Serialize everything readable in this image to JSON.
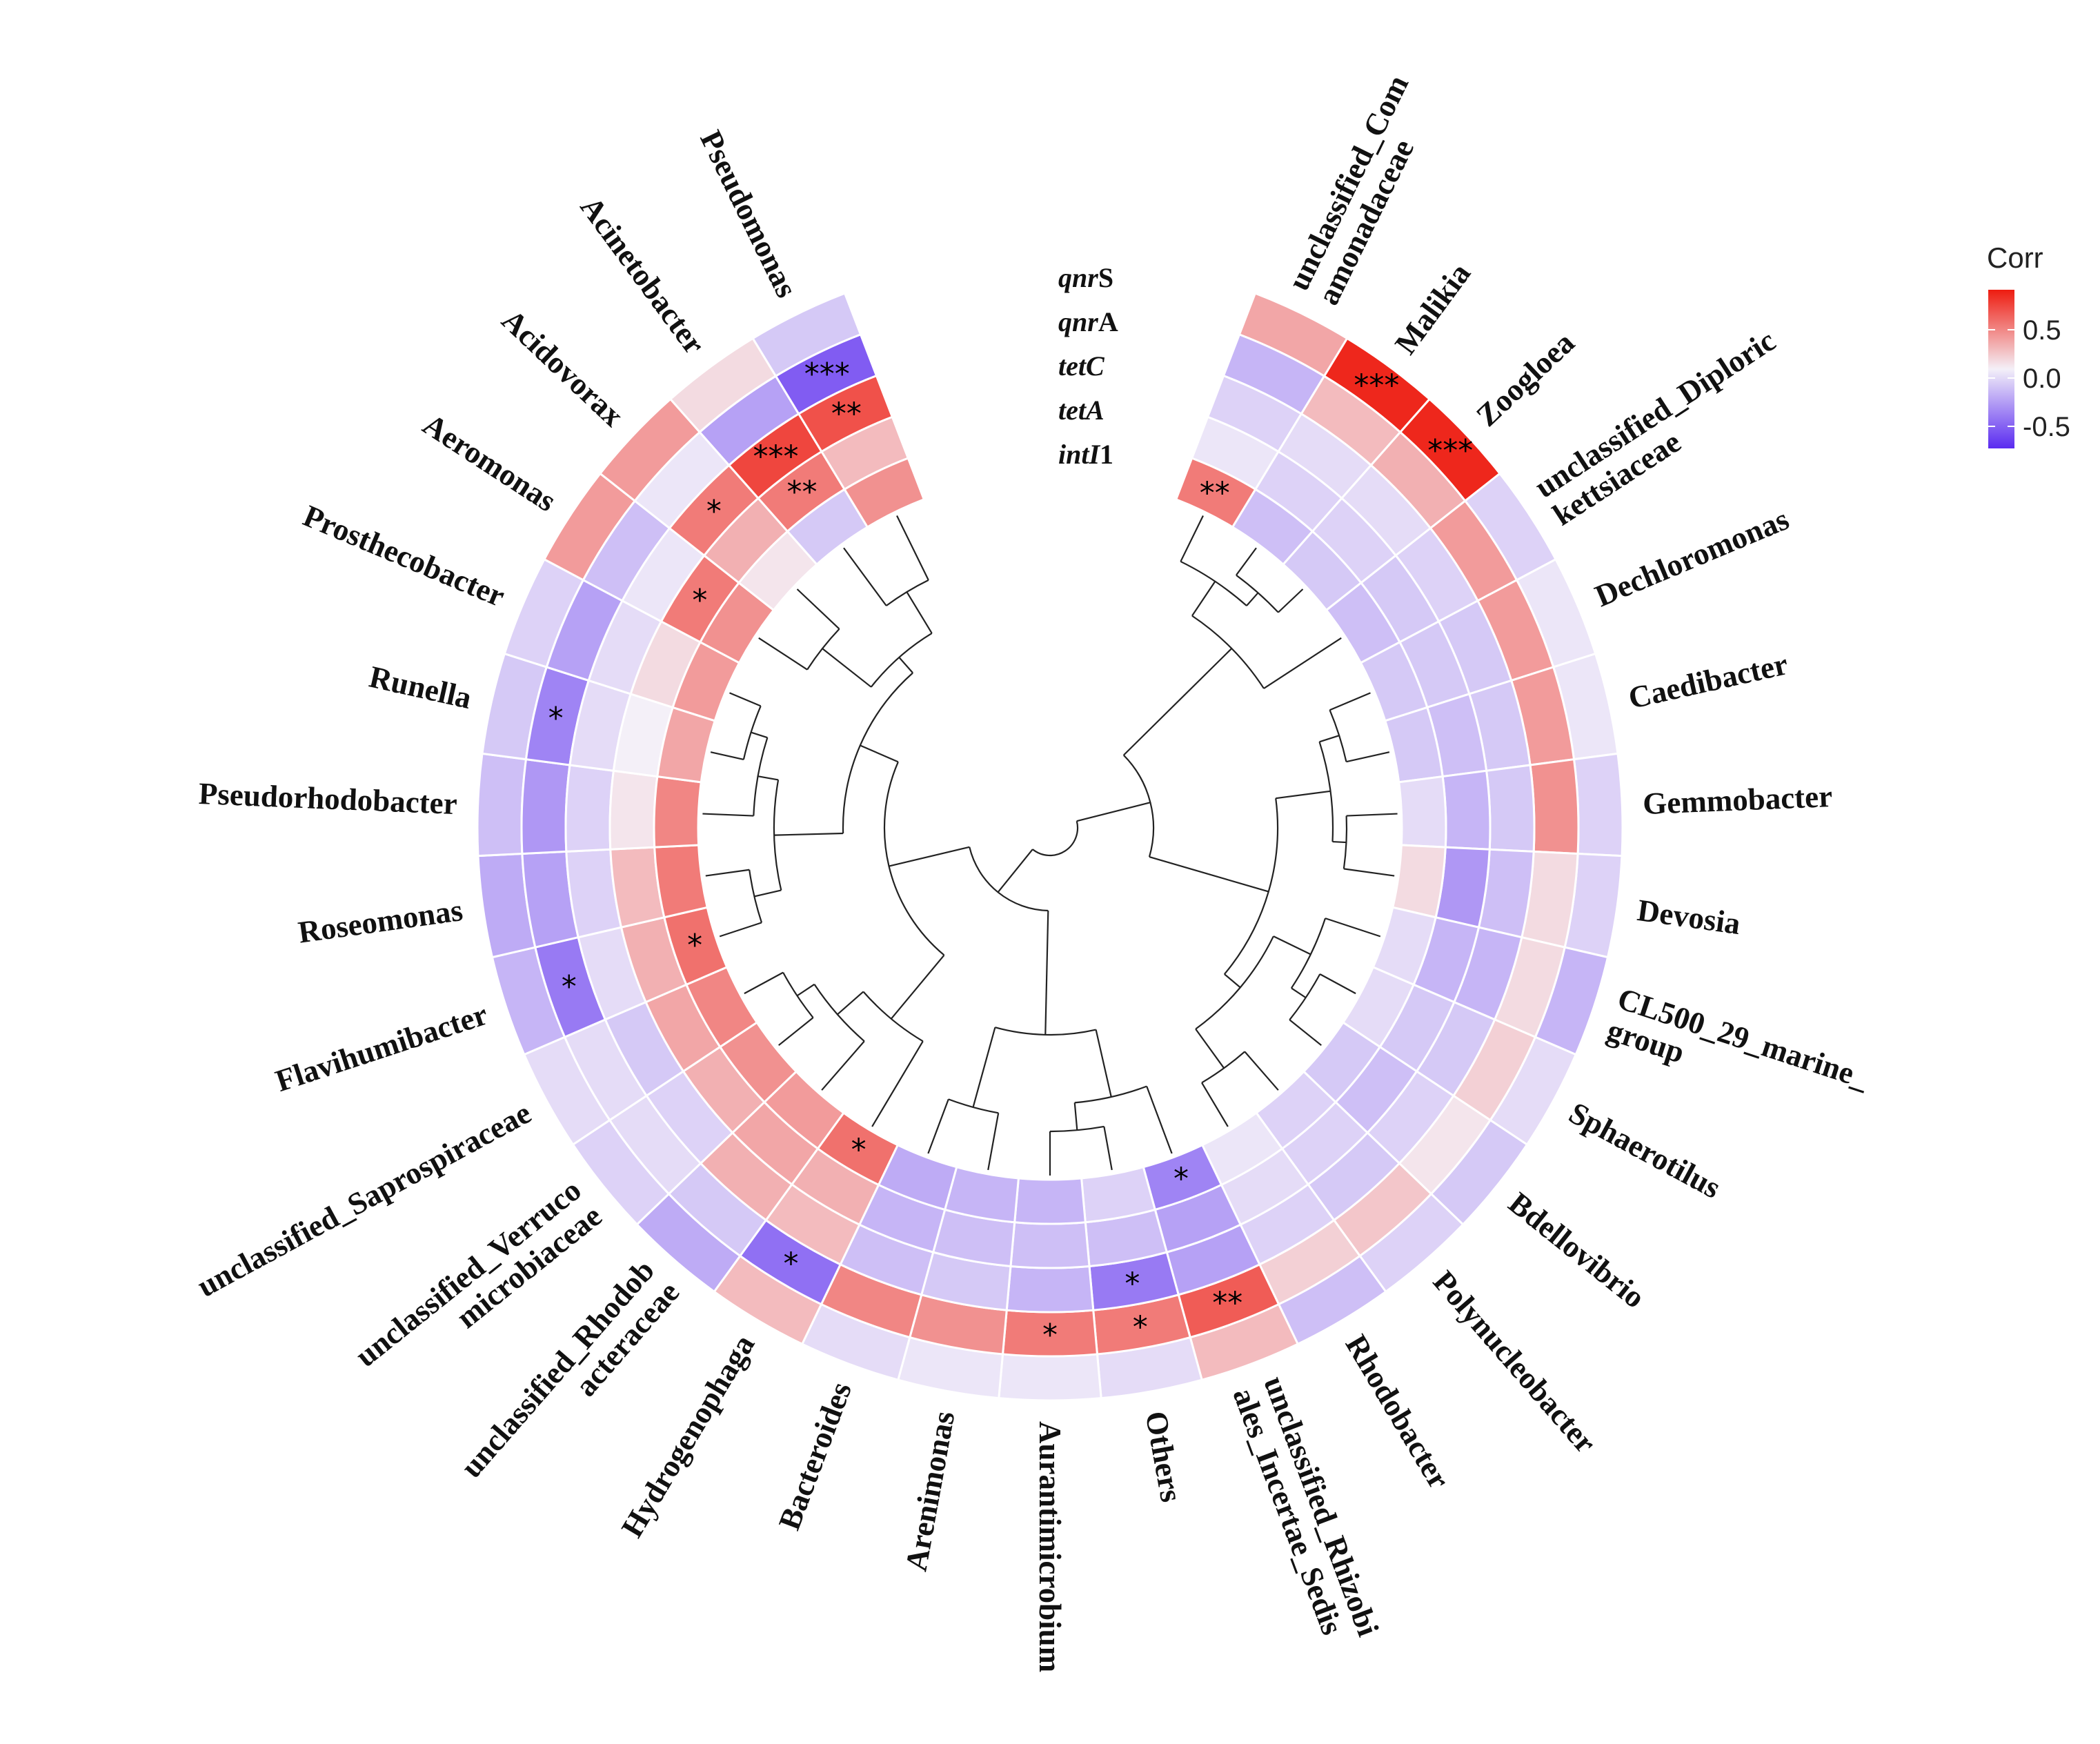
{
  "chart_data": {
    "type": "heatmap",
    "layout": "circular heatmap with dendrogram",
    "legend": {
      "title": "Corr",
      "ticks": [
        0.5,
        0.0,
        -0.5
      ],
      "tick_labels": [
        "0.5",
        "0.0",
        "-0.5"
      ],
      "colors": {
        "low": "#5a2bf0",
        "mid": "#f4f0f8",
        "high": "#ee1c10"
      },
      "position": "top-right"
    },
    "genes": [
      {
        "prefix": "qnr",
        "suffix": "S",
        "italic": "qnr"
      },
      {
        "prefix": "qnr",
        "suffix": "A",
        "italic": "qnr"
      },
      {
        "prefix": "tetC",
        "suffix": "",
        "italic": "tetC"
      },
      {
        "prefix": "tetA",
        "suffix": "",
        "italic": "tetA"
      },
      {
        "prefix": "intI",
        "suffix": "1",
        "italic": "intI"
      }
    ],
    "ring_order": "outer to inner: qnrS, qnrA, tetC, tetA, intI1",
    "rows": [
      {
        "genus": "unclassified_Com amonadaceae",
        "lines": [
          "unclassified_Com",
          "amonadaceae"
        ],
        "values": [
          0.35,
          -0.3,
          -0.15,
          -0.05,
          0.55
        ],
        "stars": [
          "",
          "",
          "",
          "",
          "**"
        ]
      },
      {
        "genus": "Malikia",
        "lines": [
          "Malikia"
        ],
        "values": [
          0.95,
          0.25,
          -0.1,
          -0.15,
          -0.25
        ],
        "stars": [
          "***",
          "",
          "",
          "",
          ""
        ]
      },
      {
        "genus": "Zoogloea",
        "lines": [
          "Zoogloea"
        ],
        "values": [
          0.95,
          0.3,
          -0.1,
          -0.15,
          -0.2
        ],
        "stars": [
          "***",
          "",
          "",
          "",
          ""
        ]
      },
      {
        "genus": "unclassified_Diploric kettsiaceae",
        "lines": [
          "unclassified_Diploric",
          "kettsiaceae"
        ],
        "values": [
          -0.15,
          0.4,
          -0.15,
          -0.2,
          -0.25
        ],
        "stars": [
          "",
          "",
          "",
          "",
          ""
        ]
      },
      {
        "genus": "Dechloromonas",
        "lines": [
          "Dechloromonas"
        ],
        "values": [
          -0.05,
          0.4,
          -0.2,
          -0.2,
          -0.2
        ],
        "stars": [
          "",
          "",
          "",
          "",
          ""
        ]
      },
      {
        "genus": "Caedibacter",
        "lines": [
          "Caedibacter"
        ],
        "values": [
          -0.05,
          0.4,
          -0.2,
          -0.25,
          -0.2
        ],
        "stars": [
          "",
          "",
          "",
          "",
          ""
        ]
      },
      {
        "genus": "Gemmobacter",
        "lines": [
          "Gemmobacter"
        ],
        "values": [
          -0.15,
          0.45,
          -0.2,
          -0.3,
          -0.1
        ],
        "stars": [
          "",
          "",
          "",
          "",
          ""
        ]
      },
      {
        "genus": "Devosia",
        "lines": [
          "Devosia"
        ],
        "values": [
          -0.15,
          0.1,
          -0.25,
          -0.45,
          0.1
        ],
        "stars": [
          "",
          "",
          "",
          "",
          ""
        ]
      },
      {
        "genus": "CL500_29_marine_ group",
        "lines": [
          "CL500_29_marine_",
          "group"
        ],
        "values": [
          -0.3,
          0.1,
          -0.3,
          -0.3,
          -0.1
        ],
        "stars": [
          "",
          "",
          "",
          "",
          ""
        ]
      },
      {
        "genus": "Sphaerotilus",
        "lines": [
          "Sphaerotilus"
        ],
        "values": [
          -0.1,
          0.15,
          -0.2,
          -0.2,
          -0.1
        ],
        "stars": [
          "",
          "",
          "",
          "",
          ""
        ]
      },
      {
        "genus": "Bdellovibrio",
        "lines": [
          "Bdellovibrio"
        ],
        "values": [
          -0.2,
          0.05,
          -0.15,
          -0.25,
          -0.2
        ],
        "stars": [
          "",
          "",
          "",
          "",
          ""
        ]
      },
      {
        "genus": "Polynucleobacter",
        "lines": [
          "Polynucleobacter"
        ],
        "values": [
          -0.15,
          0.2,
          -0.2,
          -0.15,
          -0.15
        ],
        "stars": [
          "",
          "",
          "",
          "",
          ""
        ]
      },
      {
        "genus": "Rhodobacter",
        "lines": [
          "Rhodobacter"
        ],
        "values": [
          -0.25,
          0.15,
          -0.15,
          -0.1,
          -0.05
        ],
        "stars": [
          "",
          "",
          "",
          "",
          ""
        ]
      },
      {
        "genus": "unclassified_Rhizobi ales_Incertae_Sedis",
        "lines": [
          "unclassified_Rhizobi",
          "ales_Incertae_Sedis"
        ],
        "values": [
          0.25,
          0.7,
          -0.4,
          -0.4,
          -0.55
        ],
        "stars": [
          "",
          "**",
          "",
          "",
          "*"
        ]
      },
      {
        "genus": "Others",
        "lines": [
          "Others"
        ],
        "values": [
          -0.1,
          0.55,
          -0.6,
          -0.25,
          -0.15
        ],
        "stars": [
          "",
          "*",
          "*",
          "",
          ""
        ]
      },
      {
        "genus": "Aurantimicrobium",
        "lines": [
          "Aurantimicrobium"
        ],
        "values": [
          -0.05,
          0.55,
          -0.3,
          -0.25,
          -0.3
        ],
        "stars": [
          "",
          "*",
          "",
          "",
          ""
        ]
      },
      {
        "genus": "Arenimonas",
        "lines": [
          "Arenimonas"
        ],
        "values": [
          -0.05,
          0.45,
          -0.2,
          -0.25,
          -0.3
        ],
        "stars": [
          "",
          "",
          "",
          "",
          ""
        ]
      },
      {
        "genus": "Bacteroides",
        "lines": [
          "Bacteroides"
        ],
        "values": [
          -0.1,
          0.5,
          -0.25,
          -0.3,
          -0.35
        ],
        "stars": [
          "",
          "",
          "",
          "",
          ""
        ]
      },
      {
        "genus": "Hydrogenophaga",
        "lines": [
          "Hydrogenophaga"
        ],
        "values": [
          0.25,
          -0.65,
          0.25,
          0.3,
          0.6
        ],
        "stars": [
          "",
          "*",
          "",
          "",
          "*"
        ]
      },
      {
        "genus": "unclassified_Rhodob acteraceae",
        "lines": [
          "unclassified_Rhodob",
          "acteraceae"
        ],
        "values": [
          -0.35,
          -0.2,
          0.3,
          0.35,
          0.4
        ],
        "stars": [
          "",
          "",
          "",
          "",
          ""
        ]
      },
      {
        "genus": "unclassified_Verruco microbiaceae",
        "lines": [
          "unclassified_Verruco",
          "microbiaceae"
        ],
        "values": [
          -0.15,
          -0.1,
          -0.15,
          0.3,
          0.45
        ],
        "stars": [
          "",
          "",
          "",
          "",
          ""
        ]
      },
      {
        "genus": "unclassified_Saprospiraceae",
        "lines": [
          "unclassified_Saprospiraceae"
        ],
        "values": [
          -0.1,
          -0.1,
          -0.2,
          0.35,
          0.5
        ],
        "stars": [
          "",
          "",
          "",
          "",
          ""
        ]
      },
      {
        "genus": "Flavihumibacter",
        "lines": [
          "Flavihumibacter"
        ],
        "values": [
          -0.3,
          -0.6,
          -0.1,
          0.3,
          0.6
        ],
        "stars": [
          "",
          "*",
          "",
          "",
          "*"
        ]
      },
      {
        "genus": "Roseomonas",
        "lines": [
          "Roseomonas"
        ],
        "values": [
          -0.35,
          -0.4,
          -0.15,
          0.25,
          0.55
        ],
        "stars": [
          "",
          "",
          "",
          "",
          ""
        ]
      },
      {
        "genus": "Pseudorhodobacter",
        "lines": [
          "Pseudorhodobacter"
        ],
        "values": [
          -0.25,
          -0.45,
          -0.15,
          0.05,
          0.5
        ],
        "stars": [
          "",
          "",
          "",
          "",
          ""
        ]
      },
      {
        "genus": "Runella",
        "lines": [
          "Runella"
        ],
        "values": [
          -0.2,
          -0.55,
          -0.1,
          0.0,
          0.35
        ],
        "stars": [
          "",
          "*",
          "",
          "",
          ""
        ]
      },
      {
        "genus": "Prosthecobacter",
        "lines": [
          "Prosthecobacter"
        ],
        "values": [
          -0.15,
          -0.4,
          -0.1,
          0.1,
          0.4
        ],
        "stars": [
          "",
          "",
          "",
          "",
          ""
        ]
      },
      {
        "genus": "Aeromonas",
        "lines": [
          "Aeromonas"
        ],
        "values": [
          0.4,
          -0.25,
          -0.05,
          0.55,
          0.45
        ],
        "stars": [
          "",
          "",
          "",
          "*",
          ""
        ]
      },
      {
        "genus": "Acidovorax",
        "lines": [
          "Acidovorax"
        ],
        "values": [
          0.4,
          -0.05,
          0.55,
          0.3,
          0.05
        ],
        "stars": [
          "",
          "",
          "*",
          "",
          ""
        ]
      },
      {
        "genus": "Acinetobacter",
        "lines": [
          "Acinetobacter"
        ],
        "values": [
          0.1,
          -0.4,
          0.8,
          0.55,
          -0.2
        ],
        "stars": [
          "",
          "",
          "***",
          "**",
          ""
        ]
      },
      {
        "genus": "Pseudomonas",
        "lines": [
          "Pseudomonas"
        ],
        "values": [
          -0.2,
          -0.75,
          0.75,
          0.25,
          0.45
        ],
        "stars": [
          "",
          "***",
          "**",
          "",
          ""
        ]
      }
    ]
  }
}
